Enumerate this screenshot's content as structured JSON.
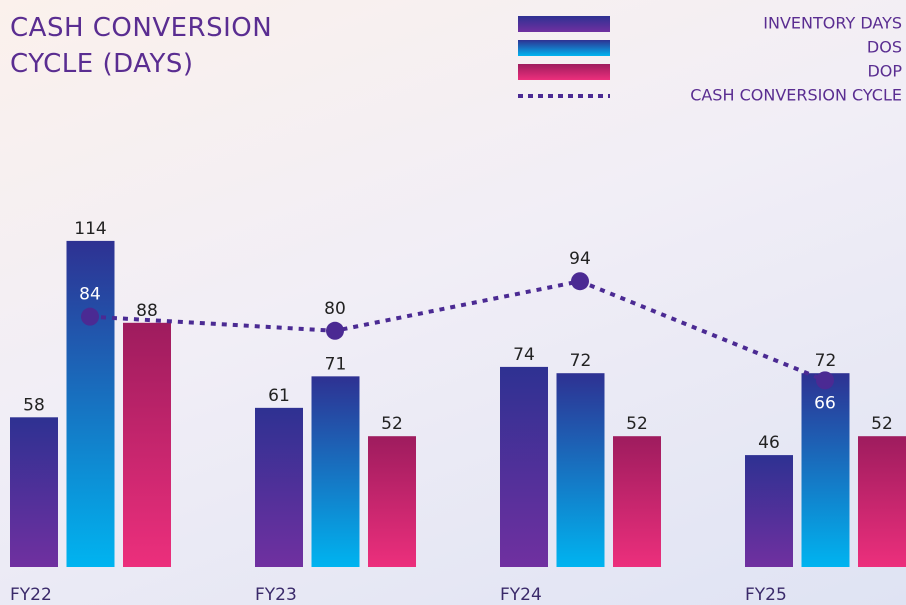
{
  "chart_data": {
    "type": "bar",
    "title": "CASH CONVERSION CYCLE (DAYS)",
    "categories": [
      "FY22",
      "FY23",
      "FY24",
      "FY25"
    ],
    "series": [
      {
        "name": "INVENTORY DAYS",
        "color": [
          "#2e3192",
          "#7030a0"
        ],
        "values": [
          58,
          61,
          74,
          46
        ]
      },
      {
        "name": "DOS",
        "color": [
          "#2e3192",
          "#00b4f0"
        ],
        "values": [
          114,
          71,
          72,
          72
        ]
      },
      {
        "name": "DOP",
        "color": [
          "#9e1c5e",
          "#ec2f7c"
        ],
        "values": [
          88,
          52,
          52,
          52
        ]
      },
      {
        "name": "CASH CONVERSION CYCLE",
        "type": "line",
        "color": "#4b2a93",
        "values": [
          84,
          80,
          94,
          66
        ]
      }
    ]
  }
}
